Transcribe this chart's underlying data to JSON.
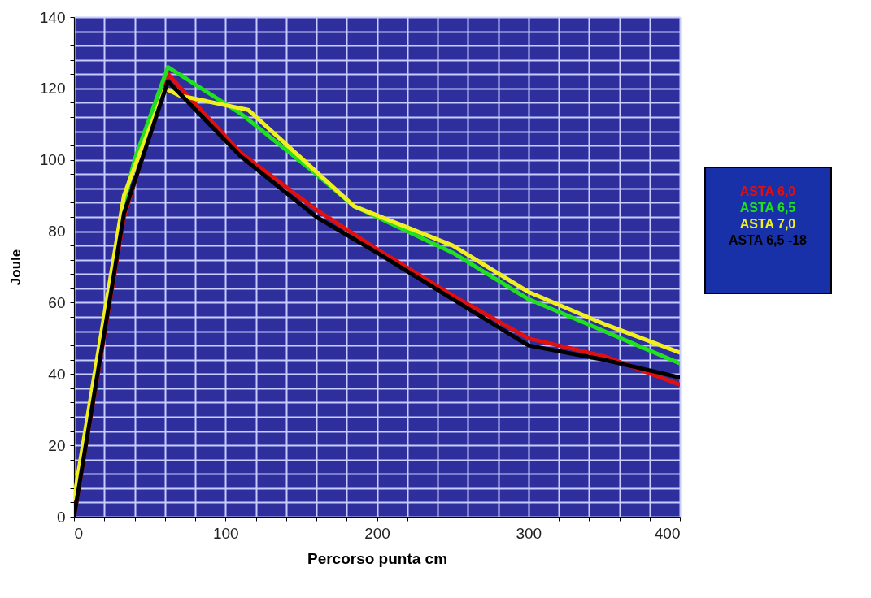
{
  "chart_data": {
    "type": "line",
    "xlabel": "Percorso punta cm",
    "ylabel": "Joule",
    "xlim": [
      0,
      400
    ],
    "ylim": [
      0,
      140
    ],
    "xticks": [
      0,
      {
        "value": 20,
        "label": null
      },
      {
        "value": 40,
        "label": null
      },
      {
        "value": 60,
        "label": null
      },
      {
        "value": 80,
        "label": null
      },
      100,
      {
        "value": 120,
        "label": null
      },
      {
        "value": 140,
        "label": null
      },
      {
        "value": 160,
        "label": null
      },
      {
        "value": 180,
        "label": null
      },
      200,
      {
        "value": 220,
        "label": null
      },
      {
        "value": 240,
        "label": null
      },
      {
        "value": 260,
        "label": null
      },
      {
        "value": 280,
        "label": null
      },
      300,
      {
        "value": 320,
        "label": null
      },
      {
        "value": 340,
        "label": null
      },
      {
        "value": 360,
        "label": null
      },
      {
        "value": 380,
        "label": null
      },
      400
    ],
    "yticks": [
      0,
      {
        "value": 4,
        "label": null
      },
      {
        "value": 8,
        "label": null
      },
      {
        "value": 12,
        "label": null
      },
      {
        "value": 16,
        "label": null
      },
      20,
      {
        "value": 24,
        "label": null
      },
      {
        "value": 28,
        "label": null
      },
      {
        "value": 32,
        "label": null
      },
      {
        "value": 36,
        "label": null
      },
      40,
      {
        "value": 44,
        "label": null
      },
      {
        "value": 48,
        "label": null
      },
      {
        "value": 52,
        "label": null
      },
      {
        "value": 56,
        "label": null
      },
      60,
      {
        "value": 64,
        "label": null
      },
      {
        "value": 68,
        "label": null
      },
      {
        "value": 72,
        "label": null
      },
      {
        "value": 76,
        "label": null
      },
      80,
      {
        "value": 84,
        "label": null
      },
      {
        "value": 88,
        "label": null
      },
      {
        "value": 92,
        "label": null
      },
      {
        "value": 96,
        "label": null
      },
      100,
      {
        "value": 104,
        "label": null
      },
      {
        "value": 108,
        "label": null
      },
      {
        "value": 112,
        "label": null
      },
      {
        "value": 116,
        "label": null
      },
      120,
      {
        "value": 124,
        "label": null
      },
      {
        "value": 128,
        "label": null
      },
      {
        "value": 132,
        "label": null
      },
      {
        "value": 136,
        "label": null
      },
      140
    ],
    "grid": true,
    "legend": "right",
    "marker": "none",
    "line_style": "solid",
    "series": [
      {
        "name": "ASTA 6,0",
        "color": "#e01010",
        "x": [
          0,
          33,
          62,
          110,
          160,
          200,
          250,
          300,
          350,
          400
        ],
        "values": [
          0,
          84,
          124,
          102,
          86,
          75,
          62,
          50,
          45,
          37
        ]
      },
      {
        "name": "ASTA 6,5",
        "color": "#20e020",
        "x": [
          33,
          40,
          62,
          110,
          160,
          185,
          250,
          300,
          350,
          400
        ],
        "values": [
          88,
          100,
          126,
          113,
          96,
          87,
          74,
          61,
          52,
          43
        ]
      },
      {
        "name": "ASTA 7,0",
        "color": "#f0f020",
        "x": [
          0,
          33,
          40,
          60,
          70,
          115,
          185,
          250,
          300,
          350,
          400
        ],
        "values": [
          5,
          90,
          98,
          120,
          118,
          114,
          87,
          76,
          63,
          54,
          46
        ]
      },
      {
        "name": "ASTA 6,5 -18",
        "color": "#000000",
        "x": [
          0,
          33,
          62,
          110,
          160,
          200,
          250,
          300,
          350,
          400
        ],
        "values": [
          0,
          85,
          122,
          101,
          84,
          74,
          61,
          48,
          44,
          39
        ]
      }
    ]
  }
}
